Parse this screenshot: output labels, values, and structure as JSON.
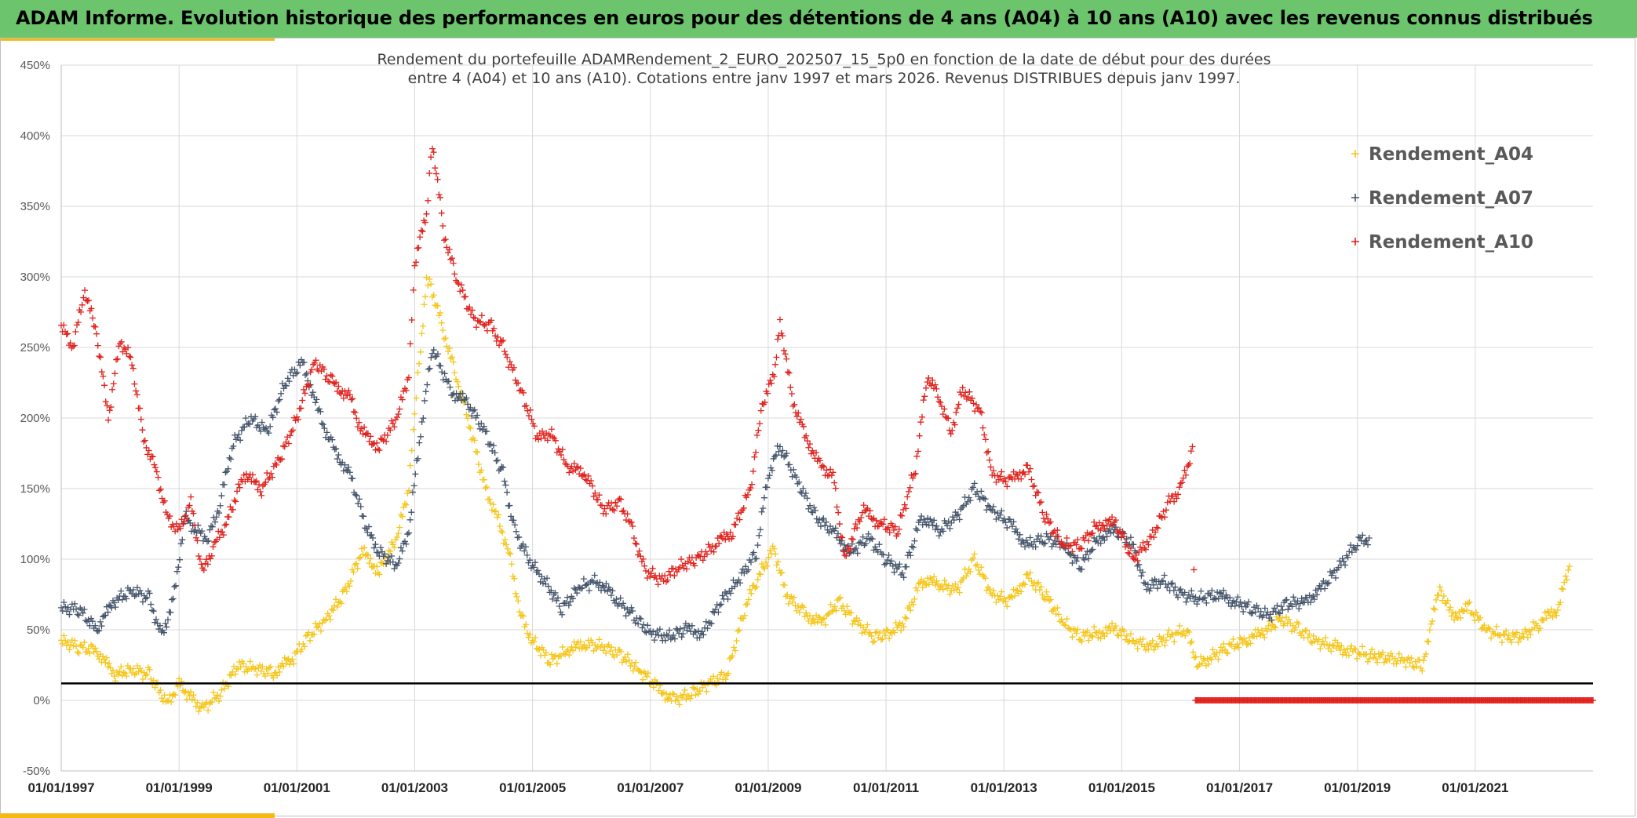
{
  "header": {
    "title": "ADAM Informe. Evolution historique des performances en euros pour des détentions de 4 ans (A04) à 10 ans (A10) avec les revenus connus distribués"
  },
  "colors": {
    "header_bg": "#6cc46c",
    "accent": "#f5b914",
    "A04": "#f5c518",
    "A07": "#44546a",
    "A10": "#e0201b",
    "reference_line": "#000000",
    "grid": "#d9d9d9"
  },
  "chart_data": {
    "type": "scatter",
    "title_lines": [
      "Rendement du portefeuille ADAMRendement_2_EURO_202507_15_5p0  en fonction de la date de début pour des durées",
      "entre 4 (A04) et 10 ans (A10). Cotations entre janv 1997 et mars 2026. Revenus DISTRIBUES depuis janv 1997."
    ],
    "xlabel": "",
    "ylabel": "",
    "marker": "+",
    "x_ticks": [
      "01/01/1997",
      "01/01/1999",
      "01/01/2001",
      "01/01/2003",
      "01/01/2005",
      "01/01/2007",
      "01/01/2009",
      "01/01/2011",
      "01/01/2013",
      "01/01/2015",
      "01/01/2017",
      "01/01/2019",
      "01/01/2021"
    ],
    "x_range": [
      "1997-01-01",
      "2023-01-01"
    ],
    "y_ticks": [
      "-50%",
      "0%",
      "50%",
      "100%",
      "150%",
      "200%",
      "250%",
      "300%",
      "350%",
      "400%",
      "450%"
    ],
    "y_range": [
      -50,
      450
    ],
    "grid": true,
    "legend_position": "top-right",
    "reference_line": {
      "y": 12
    },
    "series": [
      {
        "name": "Rendement_A04",
        "color": "#f5c518",
        "points": [
          [
            1997.0,
            42
          ],
          [
            1997.3,
            38
          ],
          [
            1997.6,
            35
          ],
          [
            1997.9,
            18
          ],
          [
            1998.2,
            22
          ],
          [
            1998.5,
            18
          ],
          [
            1998.8,
            -2
          ],
          [
            1999.0,
            12
          ],
          [
            1999.2,
            2
          ],
          [
            1999.4,
            -6
          ],
          [
            1999.7,
            5
          ],
          [
            2000.0,
            25
          ],
          [
            2000.3,
            22
          ],
          [
            2000.6,
            20
          ],
          [
            2000.9,
            28
          ],
          [
            2001.2,
            45
          ],
          [
            2001.5,
            58
          ],
          [
            2001.8,
            75
          ],
          [
            2002.1,
            105
          ],
          [
            2002.4,
            92
          ],
          [
            2002.7,
            115
          ],
          [
            2002.9,
            150
          ],
          [
            2003.0,
            205
          ],
          [
            2003.1,
            250
          ],
          [
            2003.2,
            300
          ],
          [
            2003.3,
            290
          ],
          [
            2003.5,
            260
          ],
          [
            2003.7,
            230
          ],
          [
            2003.9,
            200
          ],
          [
            2004.2,
            150
          ],
          [
            2004.4,
            130
          ],
          [
            2004.6,
            105
          ],
          [
            2004.8,
            60
          ],
          [
            2005.0,
            42
          ],
          [
            2005.3,
            28
          ],
          [
            2005.6,
            35
          ],
          [
            2005.9,
            40
          ],
          [
            2006.2,
            38
          ],
          [
            2006.5,
            32
          ],
          [
            2006.8,
            22
          ],
          [
            2007.1,
            10
          ],
          [
            2007.4,
            0
          ],
          [
            2007.7,
            5
          ],
          [
            2008.0,
            12
          ],
          [
            2008.3,
            18
          ],
          [
            2008.6,
            65
          ],
          [
            2008.8,
            85
          ],
          [
            2009.1,
            108
          ],
          [
            2009.3,
            75
          ],
          [
            2009.6,
            62
          ],
          [
            2009.9,
            55
          ],
          [
            2010.2,
            70
          ],
          [
            2010.5,
            55
          ],
          [
            2010.8,
            45
          ],
          [
            2011.1,
            48
          ],
          [
            2011.3,
            55
          ],
          [
            2011.6,
            85
          ],
          [
            2011.9,
            82
          ],
          [
            2012.2,
            78
          ],
          [
            2012.5,
            100
          ],
          [
            2012.8,
            75
          ],
          [
            2013.1,
            70
          ],
          [
            2013.4,
            88
          ],
          [
            2013.7,
            75
          ],
          [
            2014.0,
            55
          ],
          [
            2014.3,
            45
          ],
          [
            2014.6,
            48
          ],
          [
            2014.9,
            50
          ],
          [
            2015.2,
            42
          ],
          [
            2015.5,
            38
          ],
          [
            2015.8,
            45
          ],
          [
            2016.1,
            50
          ],
          [
            2016.3,
            25
          ],
          [
            2016.5,
            30
          ],
          [
            2016.8,
            38
          ],
          [
            2017.1,
            42
          ],
          [
            2017.4,
            48
          ],
          [
            2017.7,
            58
          ],
          [
            2018.0,
            50
          ],
          [
            2018.3,
            42
          ],
          [
            2018.6,
            38
          ],
          [
            2018.9,
            35
          ],
          [
            2019.2,
            32
          ],
          [
            2019.5,
            30
          ],
          [
            2019.8,
            28
          ],
          [
            2020.1,
            25
          ],
          [
            2020.4,
            80
          ],
          [
            2020.6,
            60
          ],
          [
            2020.9,
            65
          ],
          [
            2021.2,
            50
          ],
          [
            2021.5,
            45
          ],
          [
            2021.8,
            45
          ],
          [
            2022.1,
            55
          ],
          [
            2022.4,
            65
          ],
          [
            2022.6,
            95
          ]
        ]
      },
      {
        "name": "Rendement_A07",
        "color": "#44546a",
        "points": [
          [
            1997.0,
            65
          ],
          [
            1997.3,
            65
          ],
          [
            1997.6,
            50
          ],
          [
            1997.9,
            70
          ],
          [
            1998.2,
            78
          ],
          [
            1998.5,
            72
          ],
          [
            1998.7,
            45
          ],
          [
            1998.9,
            70
          ],
          [
            1999.1,
            130
          ],
          [
            1999.3,
            120
          ],
          [
            1999.5,
            115
          ],
          [
            1999.7,
            140
          ],
          [
            1999.9,
            180
          ],
          [
            2000.2,
            200
          ],
          [
            2000.5,
            190
          ],
          [
            2000.8,
            225
          ],
          [
            2001.1,
            240
          ],
          [
            2001.4,
            200
          ],
          [
            2001.6,
            180
          ],
          [
            2001.9,
            160
          ],
          [
            2002.2,
            120
          ],
          [
            2002.4,
            105
          ],
          [
            2002.7,
            95
          ],
          [
            2002.9,
            120
          ],
          [
            2003.1,
            190
          ],
          [
            2003.3,
            250
          ],
          [
            2003.6,
            220
          ],
          [
            2003.9,
            210
          ],
          [
            2004.2,
            190
          ],
          [
            2004.5,
            160
          ],
          [
            2004.7,
            120
          ],
          [
            2005.0,
            95
          ],
          [
            2005.2,
            85
          ],
          [
            2005.5,
            65
          ],
          [
            2005.8,
            80
          ],
          [
            2006.1,
            85
          ],
          [
            2006.4,
            72
          ],
          [
            2006.7,
            60
          ],
          [
            2007.0,
            48
          ],
          [
            2007.3,
            45
          ],
          [
            2007.6,
            50
          ],
          [
            2007.9,
            48
          ],
          [
            2008.2,
            70
          ],
          [
            2008.5,
            85
          ],
          [
            2008.8,
            105
          ],
          [
            2009.0,
            160
          ],
          [
            2009.2,
            180
          ],
          [
            2009.5,
            155
          ],
          [
            2009.8,
            130
          ],
          [
            2010.1,
            120
          ],
          [
            2010.4,
            105
          ],
          [
            2010.7,
            115
          ],
          [
            2011.0,
            100
          ],
          [
            2011.3,
            90
          ],
          [
            2011.6,
            130
          ],
          [
            2011.9,
            120
          ],
          [
            2012.2,
            130
          ],
          [
            2012.5,
            150
          ],
          [
            2012.8,
            135
          ],
          [
            2013.1,
            125
          ],
          [
            2013.4,
            110
          ],
          [
            2013.7,
            115
          ],
          [
            2014.0,
            110
          ],
          [
            2014.3,
            95
          ],
          [
            2014.6,
            115
          ],
          [
            2014.9,
            120
          ],
          [
            2015.2,
            110
          ],
          [
            2015.4,
            80
          ],
          [
            2015.7,
            85
          ],
          [
            2016.0,
            75
          ],
          [
            2016.3,
            72
          ],
          [
            2016.6,
            75
          ],
          [
            2016.9,
            70
          ],
          [
            2017.2,
            65
          ],
          [
            2017.5,
            60
          ],
          [
            2017.8,
            68
          ],
          [
            2018.1,
            70
          ],
          [
            2018.4,
            80
          ],
          [
            2018.7,
            95
          ],
          [
            2019.0,
            112
          ],
          [
            2019.2,
            115
          ]
        ]
      },
      {
        "name": "Rendement_A10",
        "color": "#e0201b",
        "points": [
          [
            1997.0,
            265
          ],
          [
            1997.2,
            250
          ],
          [
            1997.4,
            290
          ],
          [
            1997.6,
            260
          ],
          [
            1997.8,
            200
          ],
          [
            1998.0,
            255
          ],
          [
            1998.2,
            240
          ],
          [
            1998.4,
            185
          ],
          [
            1998.6,
            165
          ],
          [
            1998.8,
            130
          ],
          [
            1999.0,
            120
          ],
          [
            1999.2,
            140
          ],
          [
            1999.4,
            90
          ],
          [
            1999.6,
            110
          ],
          [
            1999.8,
            125
          ],
          [
            2000.1,
            160
          ],
          [
            2000.4,
            150
          ],
          [
            2000.7,
            170
          ],
          [
            2001.0,
            200
          ],
          [
            2001.3,
            240
          ],
          [
            2001.6,
            225
          ],
          [
            2001.9,
            215
          ],
          [
            2002.1,
            190
          ],
          [
            2002.4,
            180
          ],
          [
            2002.7,
            200
          ],
          [
            2002.9,
            230
          ],
          [
            2003.0,
            310
          ],
          [
            2003.2,
            345
          ],
          [
            2003.3,
            395
          ],
          [
            2003.5,
            330
          ],
          [
            2003.7,
            300
          ],
          [
            2004.0,
            270
          ],
          [
            2004.3,
            265
          ],
          [
            2004.5,
            250
          ],
          [
            2004.8,
            220
          ],
          [
            2005.1,
            185
          ],
          [
            2005.3,
            190
          ],
          [
            2005.6,
            165
          ],
          [
            2005.9,
            160
          ],
          [
            2006.2,
            135
          ],
          [
            2006.5,
            140
          ],
          [
            2006.7,
            120
          ],
          [
            2006.9,
            92
          ],
          [
            2007.2,
            85
          ],
          [
            2007.5,
            95
          ],
          [
            2007.8,
            100
          ],
          [
            2008.1,
            110
          ],
          [
            2008.4,
            120
          ],
          [
            2008.7,
            150
          ],
          [
            2008.9,
            210
          ],
          [
            2009.1,
            230
          ],
          [
            2009.2,
            270
          ],
          [
            2009.4,
            215
          ],
          [
            2009.6,
            190
          ],
          [
            2009.9,
            165
          ],
          [
            2010.1,
            160
          ],
          [
            2010.3,
            100
          ],
          [
            2010.6,
            135
          ],
          [
            2010.9,
            125
          ],
          [
            2011.2,
            120
          ],
          [
            2011.5,
            165
          ],
          [
            2011.7,
            230
          ],
          [
            2011.9,
            215
          ],
          [
            2012.1,
            190
          ],
          [
            2012.3,
            220
          ],
          [
            2012.6,
            205
          ],
          [
            2012.8,
            160
          ],
          [
            2013.1,
            155
          ],
          [
            2013.4,
            165
          ],
          [
            2013.7,
            130
          ],
          [
            2014.0,
            110
          ],
          [
            2014.3,
            110
          ],
          [
            2014.6,
            125
          ],
          [
            2014.9,
            125
          ],
          [
            2015.2,
            100
          ],
          [
            2015.5,
            115
          ],
          [
            2015.8,
            140
          ],
          [
            2016.0,
            150
          ],
          [
            2016.2,
            178
          ],
          [
            2016.25,
            0
          ],
          [
            2017.0,
            0
          ],
          [
            2018.0,
            0
          ],
          [
            2019.0,
            0
          ],
          [
            2020.0,
            0
          ],
          [
            2021.0,
            0
          ],
          [
            2022.0,
            0
          ],
          [
            2023.0,
            0
          ]
        ]
      }
    ]
  }
}
